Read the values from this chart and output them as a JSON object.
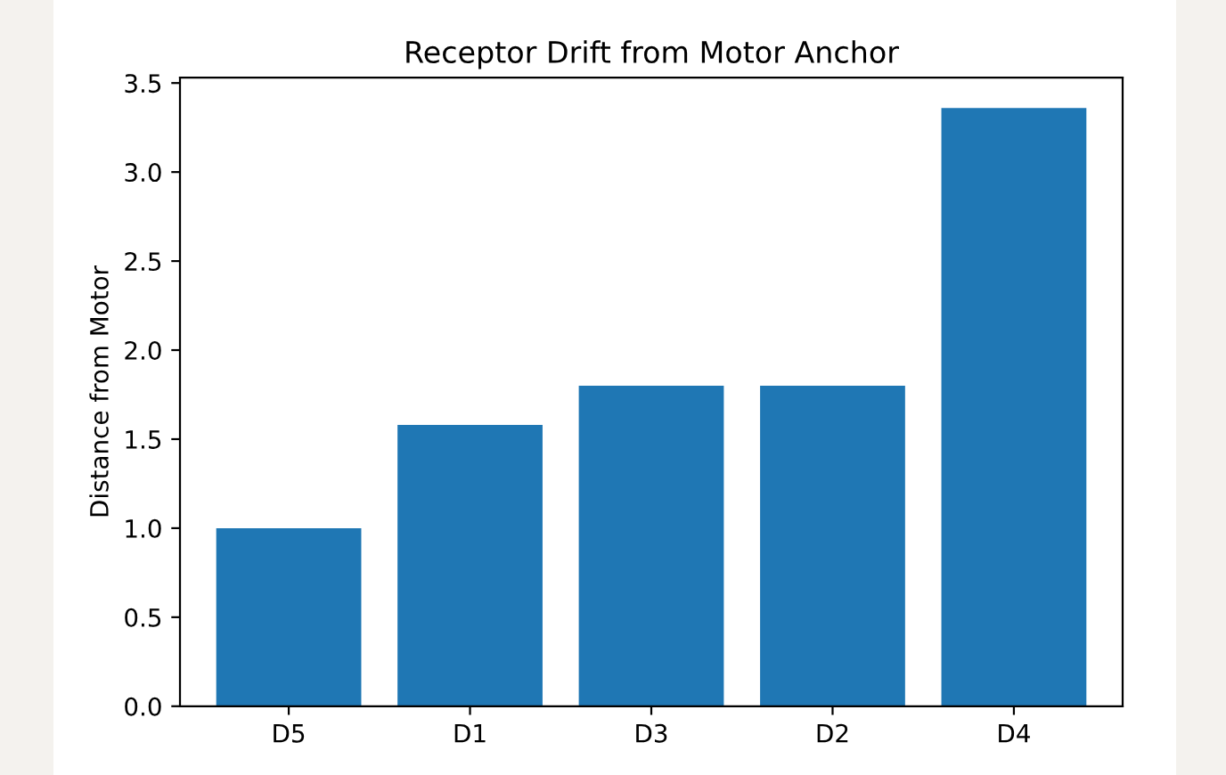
{
  "chart_data": {
    "type": "bar",
    "title": "Receptor Drift from Motor Anchor",
    "ylabel": "Distance from Motor",
    "categories": [
      "D5",
      "D1",
      "D3",
      "D2",
      "D4"
    ],
    "values": [
      1.0,
      1.58,
      1.8,
      1.8,
      3.36
    ],
    "color": "#1f77b4",
    "ylim": [
      0,
      3.53
    ],
    "yticks": [
      {
        "value": 0,
        "label": "0.0"
      },
      0.5,
      {
        "value": 1,
        "label": "1.0"
      },
      1.5,
      {
        "value": 2,
        "label": "2.0"
      },
      2.5,
      {
        "value": 3,
        "label": "3.0"
      },
      3.5
    ],
    "grid": false
  }
}
